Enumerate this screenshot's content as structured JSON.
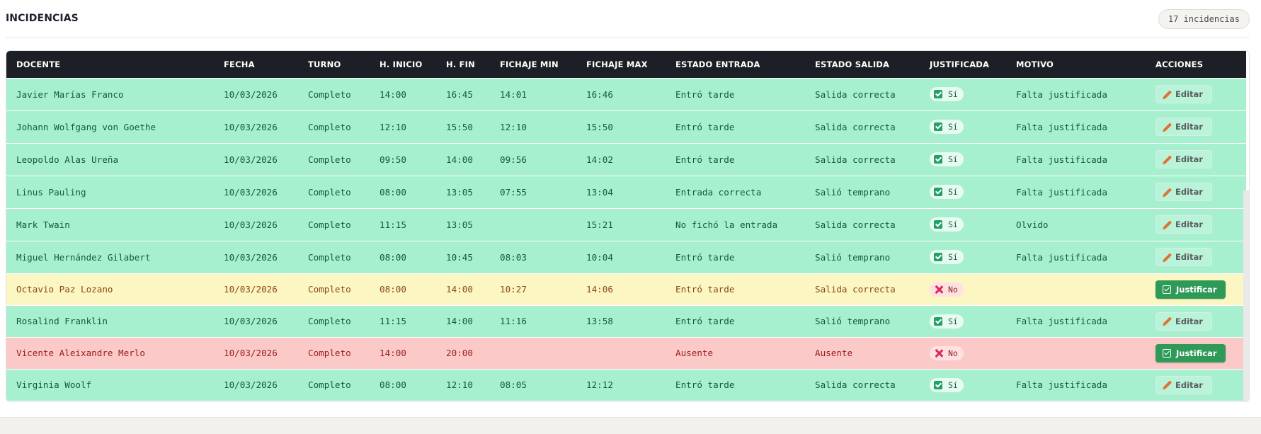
{
  "header": {
    "title": "INCIDENCIAS",
    "count_badge": "17 incidencias"
  },
  "table": {
    "columns": [
      "DOCENTE",
      "FECHA",
      "TURNO",
      "H. INICIO",
      "H. FIN",
      "FICHAJE MIN",
      "FICHAJE MAX",
      "ESTADO ENTRADA",
      "ESTADO SALIDA",
      "JUSTIFICADA",
      "MOTIVO",
      "ACCIONES"
    ],
    "rows": [
      {
        "docente": "Javier Marías Franco",
        "fecha": "10/03/2026",
        "turno": "Completo",
        "inicio": "14:00",
        "fin": "16:45",
        "fmin": "14:01",
        "fmax": "16:46",
        "entrada": "Entró tarde",
        "salida": "Salida correcta",
        "justificada": "Sí",
        "motivo": "Falta justificada",
        "accion": "Editar",
        "status": "ok"
      },
      {
        "docente": "Johann Wolfgang von Goethe",
        "fecha": "10/03/2026",
        "turno": "Completo",
        "inicio": "12:10",
        "fin": "15:50",
        "fmin": "12:10",
        "fmax": "15:50",
        "entrada": "Entró tarde",
        "salida": "Salida correcta",
        "justificada": "Sí",
        "motivo": "Falta justificada",
        "accion": "Editar",
        "status": "ok"
      },
      {
        "docente": "Leopoldo Alas Ureña",
        "fecha": "10/03/2026",
        "turno": "Completo",
        "inicio": "09:50",
        "fin": "14:00",
        "fmin": "09:56",
        "fmax": "14:02",
        "entrada": "Entró tarde",
        "salida": "Salida correcta",
        "justificada": "Sí",
        "motivo": "Falta justificada",
        "accion": "Editar",
        "status": "ok"
      },
      {
        "docente": "Linus Pauling",
        "fecha": "10/03/2026",
        "turno": "Completo",
        "inicio": "08:00",
        "fin": "13:05",
        "fmin": "07:55",
        "fmax": "13:04",
        "entrada": "Entrada correcta",
        "salida": "Salió temprano",
        "justificada": "Sí",
        "motivo": "Falta justificada",
        "accion": "Editar",
        "status": "ok"
      },
      {
        "docente": "Mark Twain",
        "fecha": "10/03/2026",
        "turno": "Completo",
        "inicio": "11:15",
        "fin": "13:05",
        "fmin": "",
        "fmax": "15:21",
        "entrada": "No fichó la entrada",
        "salida": "Salida correcta",
        "justificada": "Sí",
        "motivo": "Olvido",
        "accion": "Editar",
        "status": "ok"
      },
      {
        "docente": "Miguel Hernández Gilabert",
        "fecha": "10/03/2026",
        "turno": "Completo",
        "inicio": "08:00",
        "fin": "10:45",
        "fmin": "08:03",
        "fmax": "10:04",
        "entrada": "Entró tarde",
        "salida": "Salió temprano",
        "justificada": "Sí",
        "motivo": "Falta justificada",
        "accion": "Editar",
        "status": "ok"
      },
      {
        "docente": "Octavio Paz Lozano",
        "fecha": "10/03/2026",
        "turno": "Completo",
        "inicio": "08:00",
        "fin": "14:00",
        "fmin": "10:27",
        "fmax": "14:06",
        "entrada": "Entró tarde",
        "salida": "Salida correcta",
        "justificada": "No",
        "motivo": "",
        "accion": "Justificar",
        "status": "warn"
      },
      {
        "docente": "Rosalind Franklin",
        "fecha": "10/03/2026",
        "turno": "Completo",
        "inicio": "11:15",
        "fin": "14:00",
        "fmin": "11:16",
        "fmax": "13:58",
        "entrada": "Entró tarde",
        "salida": "Salió temprano",
        "justificada": "Sí",
        "motivo": "Falta justificada",
        "accion": "Editar",
        "status": "ok"
      },
      {
        "docente": "Vicente Aleixandre Merlo",
        "fecha": "10/03/2026",
        "turno": "Completo",
        "inicio": "14:00",
        "fin": "20:00",
        "fmin": "",
        "fmax": "",
        "entrada": "Ausente",
        "salida": "Ausente",
        "justificada": "No",
        "motivo": "",
        "accion": "Justificar",
        "status": "bad"
      },
      {
        "docente": "Virginia Woolf",
        "fecha": "10/03/2026",
        "turno": "Completo",
        "inicio": "08:00",
        "fin": "12:10",
        "fmin": "08:05",
        "fmax": "12:12",
        "entrada": "Entró tarde",
        "salida": "Salida correcta",
        "justificada": "Sí",
        "motivo": "Falta justificada",
        "accion": "Editar",
        "status": "ok"
      }
    ]
  }
}
